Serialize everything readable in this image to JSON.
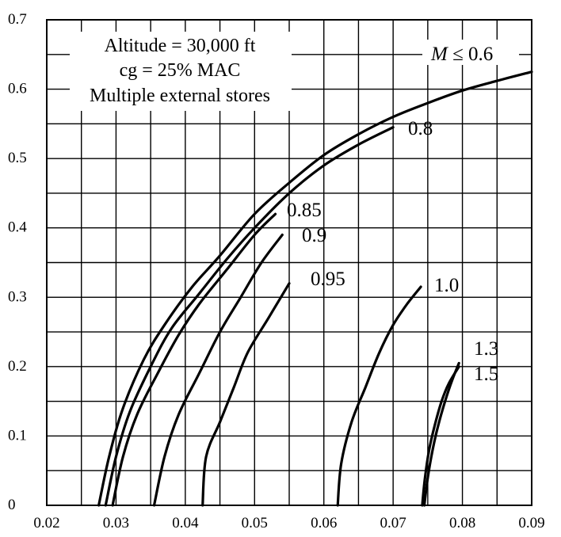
{
  "chart_data": {
    "type": "line",
    "xlabel": "",
    "ylabel": "",
    "xlim": [
      0.02,
      0.09
    ],
    "ylim": [
      0,
      0.7
    ],
    "grid": true,
    "x_major_ticks": [
      0.02,
      0.03,
      0.04,
      0.05,
      0.06,
      0.07,
      0.08,
      0.09
    ],
    "x_tick_labels": [
      "0.02",
      "0.03",
      "0.04",
      "0.05",
      "0.06",
      "0.07",
      "0.08",
      "0.09"
    ],
    "y_major_ticks": [
      0,
      0.1,
      0.2,
      0.3,
      0.4,
      0.5,
      0.6,
      0.7
    ],
    "y_tick_labels": [
      "0",
      "0.1",
      "0.2",
      "0.3",
      "0.4",
      "0.5",
      "0.6",
      "0.7"
    ],
    "annotation": {
      "lines": [
        "Altitude = 30,000 ft",
        "cg = 25% MAC",
        "Multiple external stores"
      ]
    },
    "series": [
      {
        "name": "M ≤ 0.6",
        "label_italic": "M",
        "label_rest": " ≤ 0.6",
        "x": [
          0.0275,
          0.029,
          0.031,
          0.034,
          0.037,
          0.041,
          0.045,
          0.05,
          0.055,
          0.06,
          0.065,
          0.07,
          0.075,
          0.08,
          0.085,
          0.09
        ],
        "y": [
          0.0,
          0.07,
          0.14,
          0.21,
          0.26,
          0.315,
          0.36,
          0.42,
          0.465,
          0.505,
          0.535,
          0.56,
          0.58,
          0.598,
          0.612,
          0.625
        ]
      },
      {
        "name": "0.8",
        "label": "0.8",
        "x": [
          0.0285,
          0.03,
          0.032,
          0.035,
          0.038,
          0.042,
          0.046,
          0.05,
          0.055,
          0.06,
          0.065,
          0.07
        ],
        "y": [
          0.0,
          0.07,
          0.135,
          0.2,
          0.255,
          0.305,
          0.355,
          0.4,
          0.45,
          0.49,
          0.52,
          0.545
        ]
      },
      {
        "name": "0.85",
        "label": "0.85",
        "x": [
          0.0295,
          0.031,
          0.033,
          0.036,
          0.039,
          0.042,
          0.046,
          0.05,
          0.053
        ],
        "y": [
          0.0,
          0.07,
          0.13,
          0.19,
          0.245,
          0.29,
          0.34,
          0.39,
          0.42
        ]
      },
      {
        "name": "0.9",
        "label": "0.9",
        "x": [
          0.0355,
          0.037,
          0.039,
          0.042,
          0.045,
          0.048,
          0.051,
          0.054
        ],
        "y": [
          0.0,
          0.07,
          0.13,
          0.19,
          0.25,
          0.3,
          0.35,
          0.39
        ]
      },
      {
        "name": "0.95",
        "label": "0.95",
        "x": [
          0.0425,
          0.043,
          0.045,
          0.047,
          0.049,
          0.052,
          0.055
        ],
        "y": [
          0.0,
          0.07,
          0.12,
          0.17,
          0.22,
          0.27,
          0.32
        ]
      },
      {
        "name": "1.0",
        "label": "1.0",
        "x": [
          0.062,
          0.0625,
          0.064,
          0.066,
          0.068,
          0.07,
          0.072,
          0.074
        ],
        "y": [
          0.0,
          0.06,
          0.12,
          0.17,
          0.22,
          0.26,
          0.29,
          0.315
        ]
      },
      {
        "name": "1.3",
        "label": "1.3",
        "x": [
          0.0745,
          0.075,
          0.0757,
          0.0765,
          0.0775,
          0.0785,
          0.0795
        ],
        "y": [
          0.0,
          0.04,
          0.08,
          0.115,
          0.15,
          0.18,
          0.205
        ]
      },
      {
        "name": "1.5",
        "label": "1.5",
        "x": [
          0.0742,
          0.0746,
          0.0752,
          0.076,
          0.077,
          0.078,
          0.0795
        ],
        "y": [
          0.0,
          0.04,
          0.08,
          0.115,
          0.15,
          0.175,
          0.2
        ]
      }
    ]
  }
}
